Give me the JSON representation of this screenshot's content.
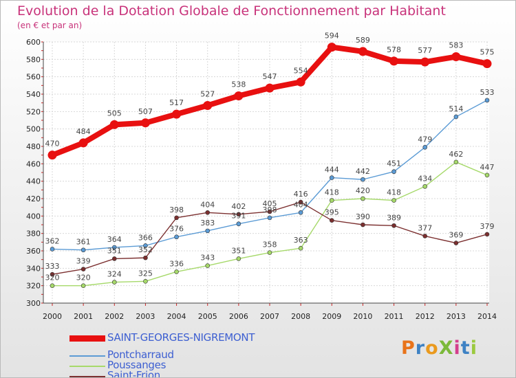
{
  "title": "Evolution de la Dotation Globale de Fonctionnement par Habitant",
  "subtitle": "(en € et par an)",
  "logo": {
    "text": "ProXiti",
    "colors": [
      "#e8731a",
      "#3e82c4",
      "#ea9a1e",
      "#7bb93a",
      "#d43f8d",
      "#3e82c4",
      "#9bc93f"
    ]
  },
  "chart_data": {
    "type": "line",
    "x": [
      "2000",
      "2001",
      "2002",
      "2003",
      "2004",
      "2005",
      "2006",
      "2007",
      "2008",
      "2009",
      "2010",
      "2011",
      "2012",
      "2013",
      "2014"
    ],
    "ylim": [
      300,
      600
    ],
    "yticks": [
      "300",
      "320",
      "340",
      "360",
      "380",
      "400",
      "420",
      "440",
      "460",
      "480",
      "500",
      "520",
      "540",
      "560",
      "580",
      "600"
    ],
    "grid": true,
    "series": [
      {
        "name": "SAINT-GEORGES-NIGREMONT",
        "color": "#e81010",
        "values": [
          470,
          484,
          505,
          507,
          517,
          527,
          538,
          547,
          554,
          594,
          589,
          578,
          577,
          583,
          575
        ]
      },
      {
        "name": "Pontcharraud",
        "color": "#5b9bd5",
        "values": [
          362,
          361,
          364,
          366,
          376,
          383,
          391,
          398,
          404,
          444,
          442,
          451,
          479,
          514,
          533
        ]
      },
      {
        "name": "Poussanges",
        "color": "#a6d96a",
        "values": [
          320,
          320,
          324,
          325,
          336,
          343,
          351,
          358,
          363,
          418,
          420,
          418,
          434,
          462,
          447
        ]
      },
      {
        "name": "Saint-Frion",
        "color": "#7b2f2f",
        "values": [
          333,
          339,
          351,
          352,
          398,
          404,
          402,
          405,
          416,
          395,
          390,
          389,
          377,
          369,
          379
        ]
      }
    ]
  }
}
